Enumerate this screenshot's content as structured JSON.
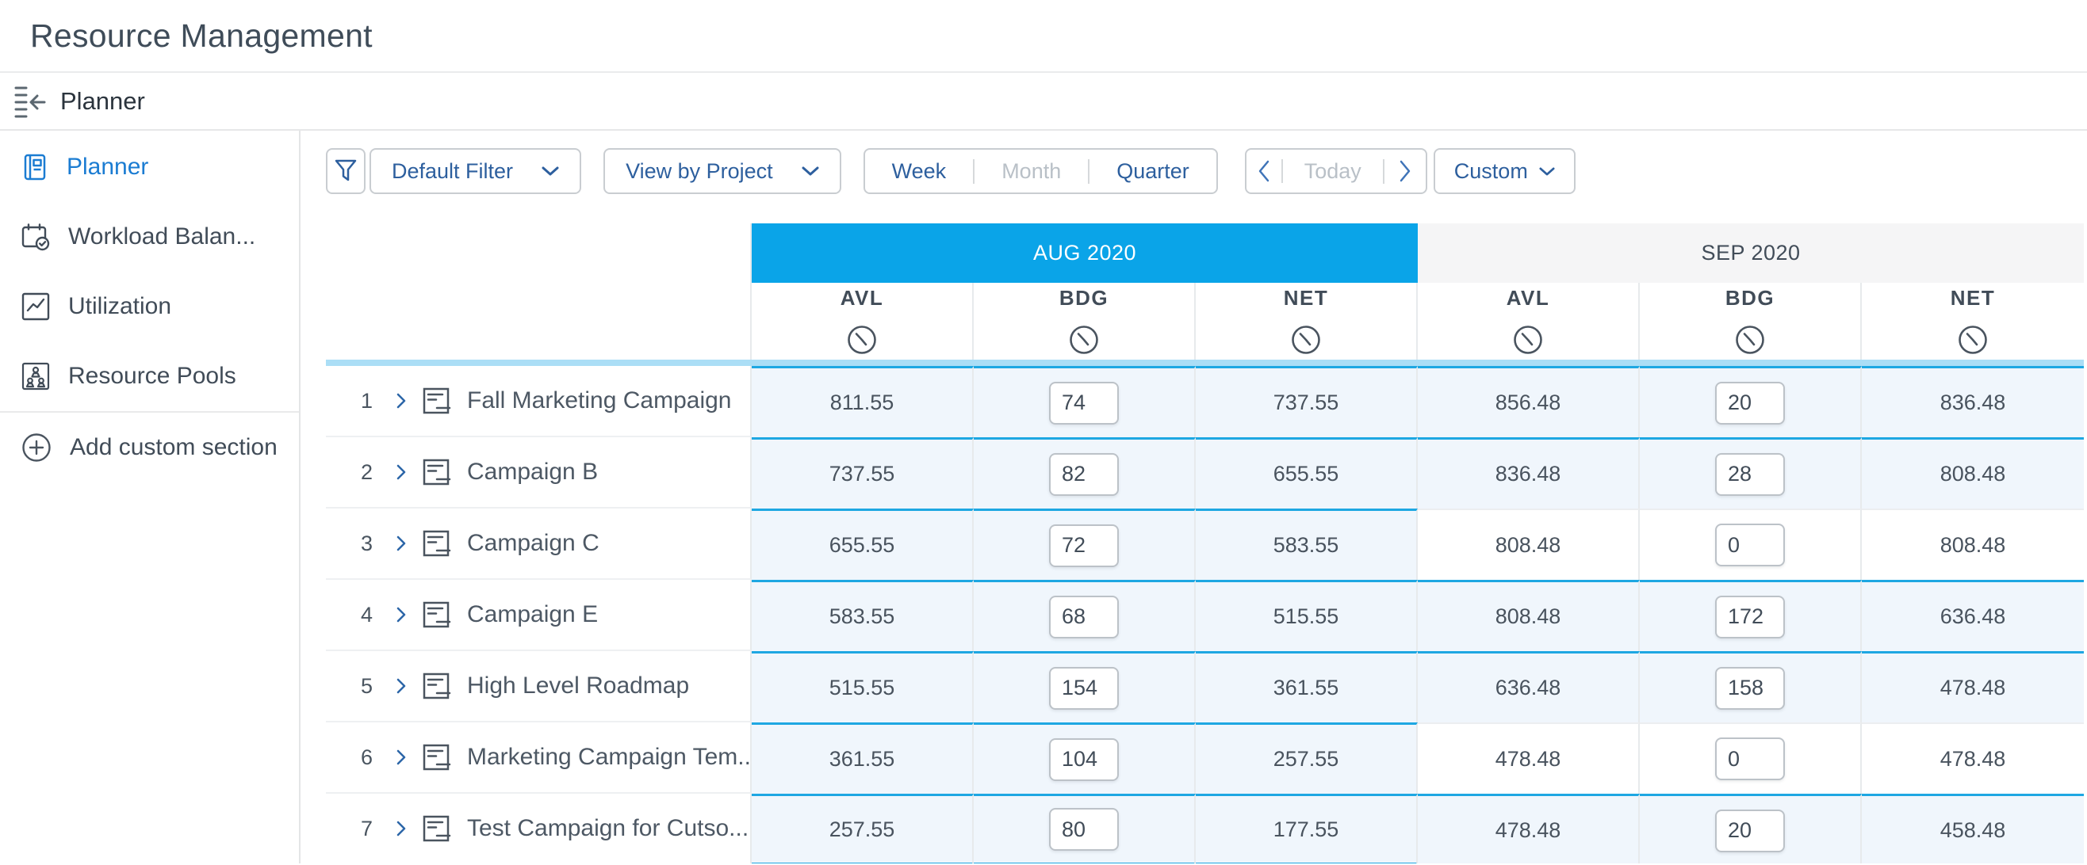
{
  "page_title": "Resource Management",
  "module_bar": {
    "title": "Planner"
  },
  "sidebar": {
    "items": [
      {
        "label": "Planner",
        "active": true
      },
      {
        "label": "Workload Balan...",
        "active": false
      },
      {
        "label": "Utilization",
        "active": false
      },
      {
        "label": "Resource Pools",
        "active": false
      }
    ],
    "add_custom_label": "Add custom section"
  },
  "toolbar": {
    "filter_dropdown": "Default Filter",
    "view_dropdown": "View by Project",
    "zoom_segments": [
      {
        "label": "Week",
        "enabled": true
      },
      {
        "label": "Month",
        "enabled": false
      },
      {
        "label": "Quarter",
        "enabled": true
      }
    ],
    "today_label": "Today",
    "custom_dropdown": "Custom"
  },
  "table": {
    "months": [
      {
        "label": "AUG 2020",
        "highlight": true,
        "columns": [
          "AVL",
          "BDG",
          "NET"
        ]
      },
      {
        "label": "SEP 2020",
        "highlight": false,
        "columns": [
          "AVL",
          "BDG",
          "NET"
        ]
      }
    ],
    "rows": [
      {
        "num": "1",
        "name": "Fall Marketing Campaign",
        "aug": {
          "avl": "811.55",
          "bdg": "74",
          "net": "737.55",
          "active": true
        },
        "sep": {
          "avl": "856.48",
          "bdg": "20",
          "net": "836.48",
          "active": true
        }
      },
      {
        "num": "2",
        "name": "Campaign B",
        "aug": {
          "avl": "737.55",
          "bdg": "82",
          "net": "655.55",
          "active": true
        },
        "sep": {
          "avl": "836.48",
          "bdg": "28",
          "net": "808.48",
          "active": true
        }
      },
      {
        "num": "3",
        "name": "Campaign C",
        "aug": {
          "avl": "655.55",
          "bdg": "72",
          "net": "583.55",
          "active": true
        },
        "sep": {
          "avl": "808.48",
          "bdg": "0",
          "net": "808.48",
          "active": false
        }
      },
      {
        "num": "4",
        "name": "Campaign E",
        "aug": {
          "avl": "583.55",
          "bdg": "68",
          "net": "515.55",
          "active": true
        },
        "sep": {
          "avl": "808.48",
          "bdg": "172",
          "net": "636.48",
          "active": true
        }
      },
      {
        "num": "5",
        "name": "High Level Roadmap",
        "aug": {
          "avl": "515.55",
          "bdg": "154",
          "net": "361.55",
          "active": true
        },
        "sep": {
          "avl": "636.48",
          "bdg": "158",
          "net": "478.48",
          "active": true
        }
      },
      {
        "num": "6",
        "name": "Marketing Campaign Tem...",
        "aug": {
          "avl": "361.55",
          "bdg": "104",
          "net": "257.55",
          "active": true
        },
        "sep": {
          "avl": "478.48",
          "bdg": "0",
          "net": "478.48",
          "active": false
        }
      },
      {
        "num": "7",
        "name": "Test Campaign for Cutso...",
        "aug": {
          "avl": "257.55",
          "bdg": "80",
          "net": "177.55",
          "active": true
        },
        "sep": {
          "avl": "478.48",
          "bdg": "20",
          "net": "458.48",
          "active": true
        }
      }
    ]
  },
  "colors": {
    "accent_cyan": "#0aa4e8",
    "row_border_cyan": "#1ea7e2",
    "band_blue": "#abdef6",
    "cell_blue_bg": "#f0f6fc",
    "toolbar_blue": "#2d5f9e",
    "sidebar_active_blue": "#1b7cd2",
    "disabled_gray": "#b9c0c7",
    "text_dark": "#414c58"
  }
}
